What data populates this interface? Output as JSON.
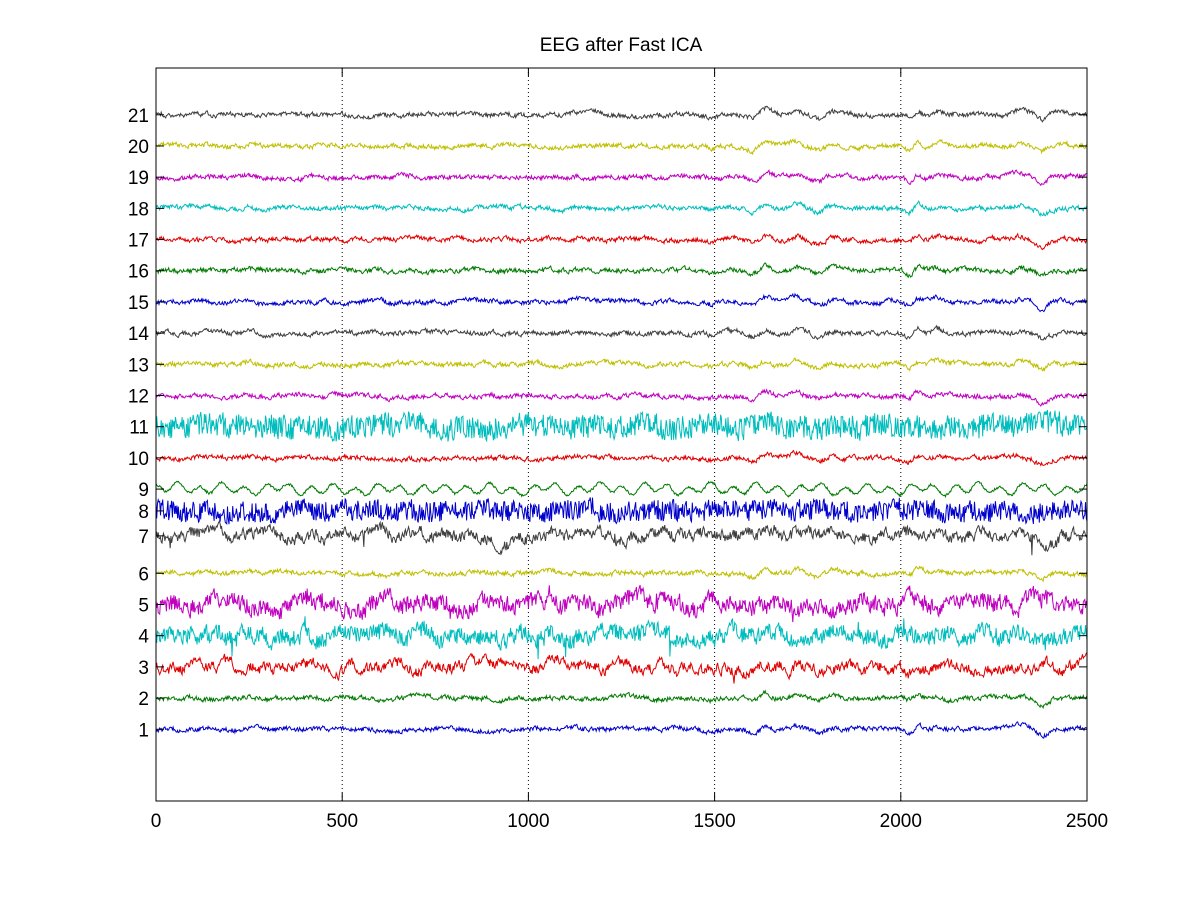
{
  "chart_data": {
    "type": "line",
    "title": "EEG after Fast ICA",
    "xlabel": "",
    "ylabel": "",
    "xlim": [
      0,
      2500
    ],
    "x_ticks": [
      "0",
      "500",
      "1000",
      "1500",
      "2000",
      "2500"
    ],
    "x_tick_values": [
      0,
      500,
      1000,
      1500,
      2000,
      2500
    ],
    "grid": "x-dotted",
    "ylim": [
      0,
      23.5
    ],
    "y_ticks": [
      "1",
      "2",
      "3",
      "4",
      "5",
      "6",
      "7",
      "8",
      "9",
      "10",
      "11",
      "12",
      "13",
      "14",
      "15",
      "16",
      "17",
      "18",
      "19",
      "20",
      "21"
    ],
    "y_tick_values": [
      2.3,
      3.3,
      4.3,
      5.3,
      6.3,
      7.3,
      8.5,
      9.3,
      10.0,
      11.0,
      12.0,
      13.0,
      14.0,
      15.0,
      16.0,
      17.0,
      18.0,
      19.0,
      20.0,
      21.0,
      22.0
    ],
    "series": [
      {
        "channel": "1",
        "color": "#0000cc",
        "type": "common",
        "amp": 0.26
      },
      {
        "channel": "2",
        "color": "#007a00",
        "type": "common",
        "amp": 0.26
      },
      {
        "channel": "3",
        "color": "#e00000",
        "type": "wild",
        "amp": 0.3
      },
      {
        "channel": "4",
        "color": "#00bdbd",
        "type": "hf",
        "amp": 0.4
      },
      {
        "channel": "5",
        "color": "#bf00bf",
        "type": "hf",
        "amp": 0.4
      },
      {
        "channel": "6",
        "color": "#bfbf00",
        "type": "common",
        "amp": 0.26
      },
      {
        "channel": "7",
        "color": "#3f3f3f",
        "type": "wild",
        "amp": 0.32
      },
      {
        "channel": "8",
        "color": "#0000cc",
        "type": "dense",
        "amp": 0.38
      },
      {
        "channel": "9",
        "color": "#007a00",
        "type": "rhythmic",
        "amp": 0.24
      },
      {
        "channel": "10",
        "color": "#e00000",
        "type": "common",
        "amp": 0.26
      },
      {
        "channel": "11",
        "color": "#00bdbd",
        "type": "dense",
        "amp": 0.44
      },
      {
        "channel": "12",
        "color": "#bf00bf",
        "type": "common",
        "amp": 0.26
      },
      {
        "channel": "13",
        "color": "#bfbf00",
        "type": "common",
        "amp": 0.26
      },
      {
        "channel": "14",
        "color": "#3f3f3f",
        "type": "common",
        "amp": 0.26
      },
      {
        "channel": "15",
        "color": "#0000cc",
        "type": "common",
        "amp": 0.26
      },
      {
        "channel": "16",
        "color": "#007a00",
        "type": "common",
        "amp": 0.26
      },
      {
        "channel": "17",
        "color": "#e00000",
        "type": "common",
        "amp": 0.26
      },
      {
        "channel": "18",
        "color": "#00bdbd",
        "type": "common",
        "amp": 0.26
      },
      {
        "channel": "19",
        "color": "#bf00bf",
        "type": "common",
        "amp": 0.26
      },
      {
        "channel": "20",
        "color": "#bfbf00",
        "type": "common",
        "amp": 0.26
      },
      {
        "channel": "21",
        "color": "#3f3f3f",
        "type": "common",
        "amp": 0.26
      }
    ],
    "common_events": [
      {
        "x": 1640,
        "v": 1.0
      },
      {
        "x": 1600,
        "v": -0.8
      },
      {
        "x": 1720,
        "v": 0.9
      },
      {
        "x": 1780,
        "v": -0.9
      },
      {
        "x": 1820,
        "v": 0.5
      },
      {
        "x": 2030,
        "v": -1.8
      },
      {
        "x": 2040,
        "v": 1.8
      },
      {
        "x": 2100,
        "v": 0.6
      },
      {
        "x": 2320,
        "v": 0.7
      },
      {
        "x": 2380,
        "v": -1.3
      },
      {
        "x": 1490,
        "v": -0.4
      },
      {
        "x": 250,
        "v": 0.4
      },
      {
        "x": 630,
        "v": -0.3
      },
      {
        "x": 1130,
        "v": 0.3
      }
    ]
  }
}
